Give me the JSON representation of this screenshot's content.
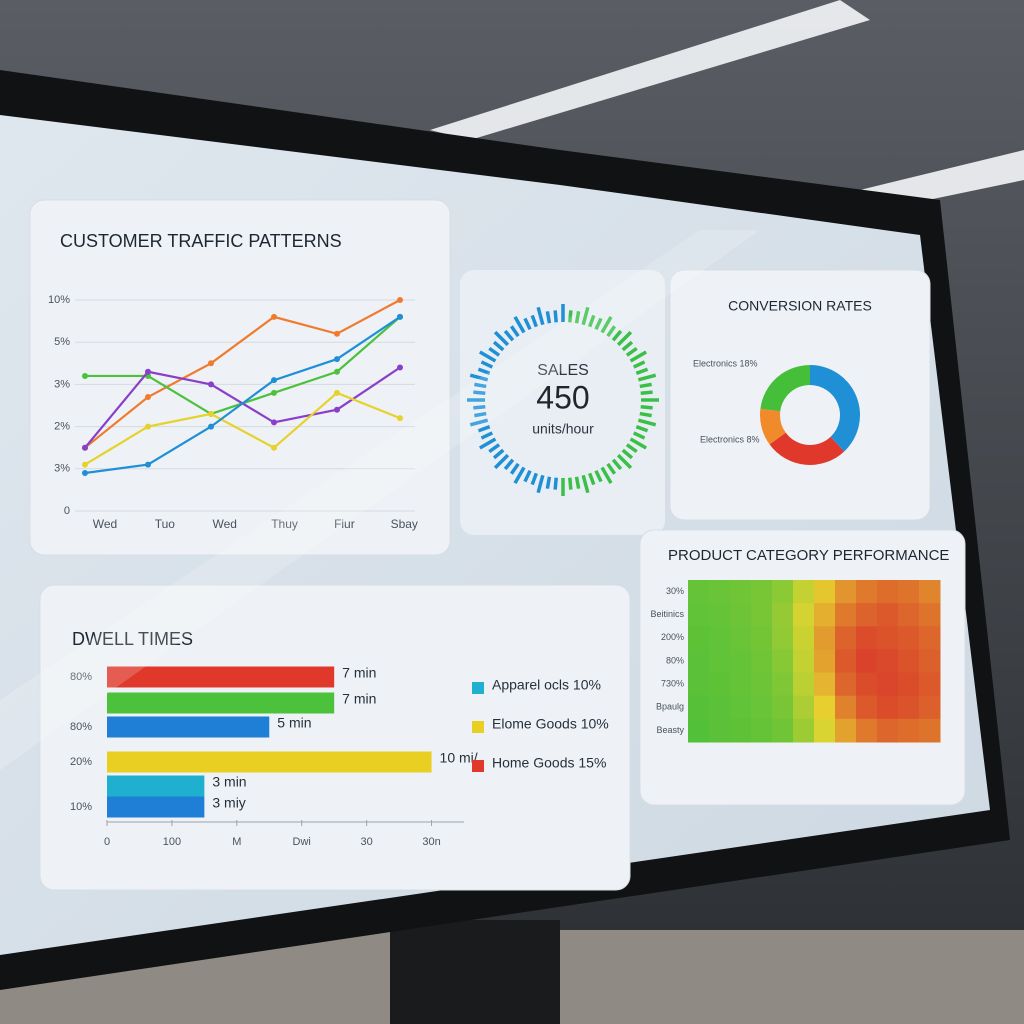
{
  "chart_data": [
    {
      "type": "line",
      "title": "CUSTOMER TRAFFIC PATTERNS",
      "categories": [
        "Wed",
        "Tuo",
        "Wed",
        "Thuy",
        "Fiur",
        "Sbay"
      ],
      "ylim": [
        0,
        5
      ],
      "yticks": [
        0,
        {
          "value": 1,
          "label": "3%"
        },
        {
          "value": 2,
          "label": "2%"
        },
        {
          "value": 3,
          "label": "3%"
        },
        {
          "value": 4,
          "label": "5%"
        },
        {
          "value": 5,
          "label": "10%"
        }
      ],
      "grid": true,
      "series": [
        {
          "color": "#f07a2e",
          "values": [
            1.5,
            2.7,
            3.5,
            4.6,
            4.2,
            5.0
          ]
        },
        {
          "color": "#4cc13c",
          "values": [
            3.2,
            3.2,
            2.3,
            2.8,
            3.3,
            4.6
          ]
        },
        {
          "color": "#8a3fc9",
          "values": [
            1.5,
            3.3,
            3.0,
            2.1,
            2.4,
            3.4
          ]
        },
        {
          "color": "#e5d22a",
          "values": [
            1.1,
            2.0,
            2.3,
            1.5,
            2.8,
            2.2
          ]
        },
        {
          "color": "#1f8fd6",
          "values": [
            0.9,
            1.1,
            2.0,
            3.1,
            3.6,
            4.6
          ]
        }
      ]
    },
    {
      "type": "donut",
      "title": "CONVERSION RATES",
      "values": [
        38,
        27,
        12,
        23
      ],
      "colors": [
        "#1f8fd6",
        "#e0392c",
        "#f08a2a",
        "#45bf3a"
      ],
      "annotations": [
        "Electronics 18%",
        "Electronics 8%"
      ]
    },
    {
      "type": "hbar",
      "title": "DWELL TIMES",
      "categories": [
        "80%",
        null,
        "80%",
        "20%",
        null,
        "10%"
      ],
      "values": [
        7,
        7,
        5,
        10,
        3,
        3
      ],
      "value_labels": [
        "7 min",
        "7 min",
        "5 min",
        "10 mi/",
        "3 min",
        "3 miy"
      ],
      "colors": [
        "#e0392c",
        "#4cc13c",
        "#1f7fd6",
        "#e8cf22",
        "#1fb0cf",
        "#1f7fd6"
      ],
      "xlim": [
        0,
        11
      ],
      "xticks": [
        0,
        {
          "value": 2,
          "label": "100"
        },
        {
          "value": 4,
          "label": "M"
        },
        {
          "value": 6,
          "label": "Dwi"
        },
        {
          "value": 8,
          "label": "30"
        },
        {
          "value": 10,
          "label": "30n"
        }
      ],
      "legend": [
        {
          "label": "Apparel ocls 10%",
          "color": "#1fb0cf"
        },
        {
          "label": "Elome Goods 10%",
          "color": "#e8cf22"
        },
        {
          "label": "Home Goods 15%",
          "color": "#e0392c"
        }
      ]
    },
    {
      "type": "heatmap",
      "title": "PRODUCT CATEGORY PERFORMANCE",
      "rows": [
        "30%",
        "Beitinics",
        "200%",
        "80%",
        "730%",
        "Bpaulg",
        "Beasty"
      ],
      "zlim": [
        0,
        100
      ],
      "values": [
        [
          15,
          16,
          18,
          20,
          25,
          40,
          55,
          70,
          78,
          82,
          80,
          75
        ],
        [
          14,
          15,
          17,
          20,
          28,
          45,
          62,
          78,
          85,
          88,
          84,
          80
        ],
        [
          13,
          14,
          16,
          19,
          27,
          42,
          68,
          85,
          92,
          90,
          88,
          84
        ],
        [
          12,
          14,
          15,
          18,
          24,
          40,
          66,
          88,
          95,
          93,
          90,
          86
        ],
        [
          12,
          13,
          15,
          17,
          22,
          38,
          60,
          84,
          92,
          94,
          92,
          88
        ],
        [
          11,
          12,
          14,
          16,
          20,
          34,
          52,
          76,
          88,
          92,
          90,
          86
        ],
        [
          10,
          12,
          13,
          15,
          18,
          30,
          46,
          66,
          78,
          84,
          82,
          80
        ]
      ]
    }
  ],
  "kpi": {
    "label": "SALES",
    "value": 450,
    "unit": "units/hour"
  }
}
